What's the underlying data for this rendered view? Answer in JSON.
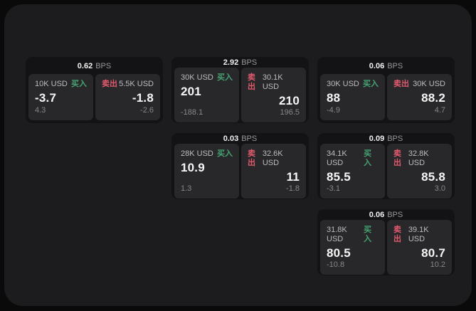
{
  "labels": {
    "bps_unit": "BPS",
    "buy": "买入",
    "sell": "卖出"
  },
  "colors": {
    "page_bg": "#0a0a0a",
    "panel_bg": "#1c1c1e",
    "card_bg": "#131315",
    "subcard_bg": "#28282b",
    "buy_green": "#46a371",
    "sell_red": "#e05a6d",
    "price_white": "#f6f6f6",
    "muted_gray": "#87878b"
  },
  "cards": [
    {
      "bps": "0.62",
      "buy": {
        "notional": "10K USD",
        "price": "-3.7",
        "change": "4.3"
      },
      "sell": {
        "notional": "5.5K USD",
        "price": "-1.8",
        "change": "-2.6"
      }
    },
    {
      "bps": "2.92",
      "buy": {
        "notional": "30K USD",
        "price": "201",
        "change": "-188.1"
      },
      "sell": {
        "notional": "30.1K USD",
        "price": "210",
        "change": "196.5"
      }
    },
    {
      "bps": "0.06",
      "buy": {
        "notional": "30K USD",
        "price": "88",
        "change": "-4.9"
      },
      "sell": {
        "notional": "30K USD",
        "price": "88.2",
        "change": "4.7"
      }
    },
    {
      "bps": "0.03",
      "buy": {
        "notional": "28K USD",
        "price": "10.9",
        "change": "1.3"
      },
      "sell": {
        "notional": "32.6K USD",
        "price": "11",
        "change": "-1.8"
      }
    },
    {
      "bps": "0.09",
      "buy": {
        "notional": "34.1K USD",
        "price": "85.5",
        "change": "-3.1"
      },
      "sell": {
        "notional": "32.8K USD",
        "price": "85.8",
        "change": "3.0"
      }
    },
    {
      "bps": "0.06",
      "buy": {
        "notional": "31.8K USD",
        "price": "80.5",
        "change": "-10.8"
      },
      "sell": {
        "notional": "39.1K USD",
        "price": "80.7",
        "change": "10.2"
      }
    }
  ]
}
